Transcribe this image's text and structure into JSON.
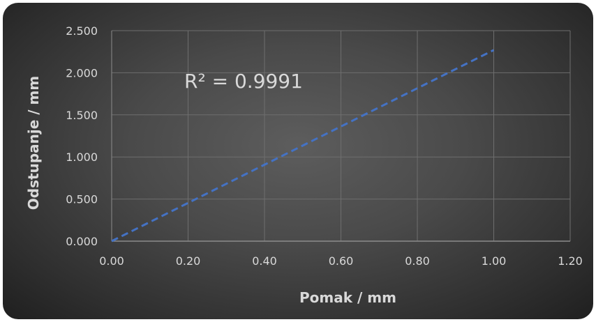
{
  "chart_data": {
    "type": "line",
    "title": "",
    "xlabel": "Pomak / mm",
    "ylabel": "Odstupanje / mm",
    "xlim": [
      0,
      1.2
    ],
    "ylim": [
      0,
      2.5
    ],
    "x_ticks": [
      "0.00",
      "0.20",
      "0.40",
      "0.60",
      "0.80",
      "1.00",
      "1.20"
    ],
    "y_ticks": [
      "0.000",
      "0.500",
      "1.000",
      "1.500",
      "2.000",
      "2.500"
    ],
    "grid": true,
    "series": [
      {
        "x": [
          0,
          1.0
        ],
        "y": [
          0,
          2.27
        ],
        "color": "#4472c4",
        "style": "dashed"
      }
    ],
    "annotations": [
      {
        "text": "R² = 0.9991"
      }
    ]
  }
}
